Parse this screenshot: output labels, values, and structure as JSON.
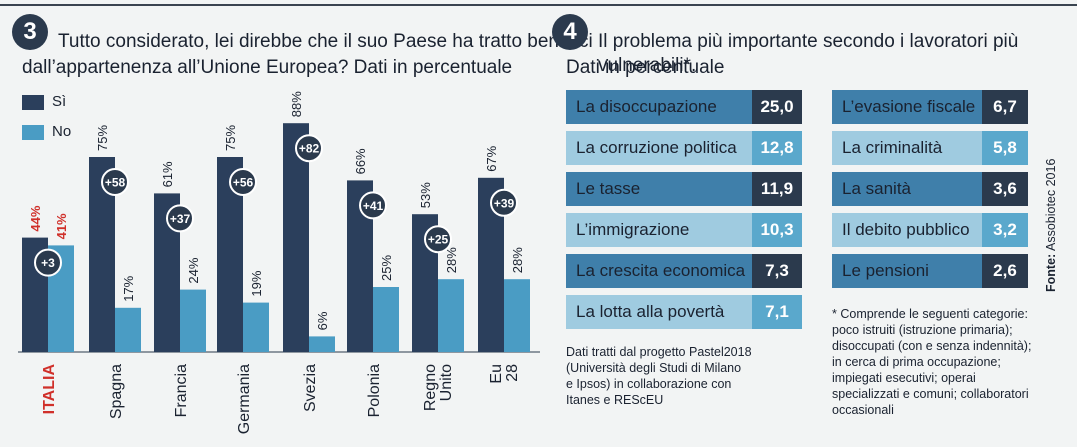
{
  "colors": {
    "si": "#2b3f5c",
    "no": "#4a9cc4",
    "label_highlight": "#d0302a",
    "table_dark": "#2b3a4d",
    "table_light": "#5aa8cc",
    "row_bg_dark": "#3f7faa",
    "row_bg_light": "#9fcbe0"
  },
  "section3": {
    "number": "3",
    "title_line1": "Tutto considerato, lei direbbe che il suo Paese ha tratto benefici",
    "title_line2": "dall’appartenenza all’Unione Europea? Dati in percentuale",
    "legend": {
      "si": "Sì",
      "no": "No"
    }
  },
  "chart_data": {
    "type": "bar",
    "categories": [
      "ITALIA",
      "Spagna",
      "Francia",
      "Germania",
      "Svezia",
      "Polonia",
      "Regno Unito",
      "Eu 28"
    ],
    "series": [
      {
        "name": "Sì",
        "values": [
          44,
          75,
          61,
          75,
          88,
          66,
          53,
          67
        ]
      },
      {
        "name": "No",
        "values": [
          41,
          17,
          24,
          19,
          6,
          25,
          28,
          28
        ]
      }
    ],
    "value_labels": {
      "si": [
        "44%",
        "75%",
        "61%",
        "75%",
        "88%",
        "66%",
        "53%",
        "67%"
      ],
      "no": [
        "41%",
        "17%",
        "24%",
        "19%",
        "6%",
        "25%",
        "28%",
        "28%"
      ]
    },
    "differences": [
      "+3",
      "+58",
      "+37",
      "+56",
      "+82",
      "+41",
      "+25",
      "+39"
    ],
    "ylim": [
      0,
      100
    ]
  },
  "section4": {
    "number": "4",
    "title_line1": "Il problema più importante secondo i  lavoratori più vulnerabili*.",
    "title_line2": "Dati in percentuale",
    "left_table": [
      {
        "label": "La disoccupazione",
        "value": "25,0"
      },
      {
        "label": "La corruzione politica",
        "value": "12,8"
      },
      {
        "label": "Le tasse",
        "value": "11,9"
      },
      {
        "label": "L’immigrazione",
        "value": "10,3"
      },
      {
        "label": "La crescita economica",
        "value": "7,3"
      },
      {
        "label": "La lotta alla povertà",
        "value": "7,1"
      }
    ],
    "right_table": [
      {
        "label": "L’evasione fiscale",
        "value": "6,7"
      },
      {
        "label": "La criminalità",
        "value": "5,8"
      },
      {
        "label": "La sanità",
        "value": "3,6"
      },
      {
        "label": "Il debito pubblico",
        "value": "3,2"
      },
      {
        "label": "Le pensioni",
        "value": "2,6"
      }
    ],
    "note_left": [
      "Dati tratti dal progetto Pastel2018",
      "(Università degli Studi di Milano",
      "e Ipsos) in collaborazione con",
      "Itanes e REScEU"
    ],
    "note_right": [
      "* Comprende le seguenti categorie:",
      "poco istruiti (istruzione primaria);",
      "disoccupati (con e senza indennità);",
      "in cerca di prima occupazione;",
      "impiegati esecutivi; operai",
      "specializzati e comuni; collaboratori",
      "occasionali"
    ],
    "source_label": "Fonte:",
    "source_value": "Assobiotec 2016"
  }
}
